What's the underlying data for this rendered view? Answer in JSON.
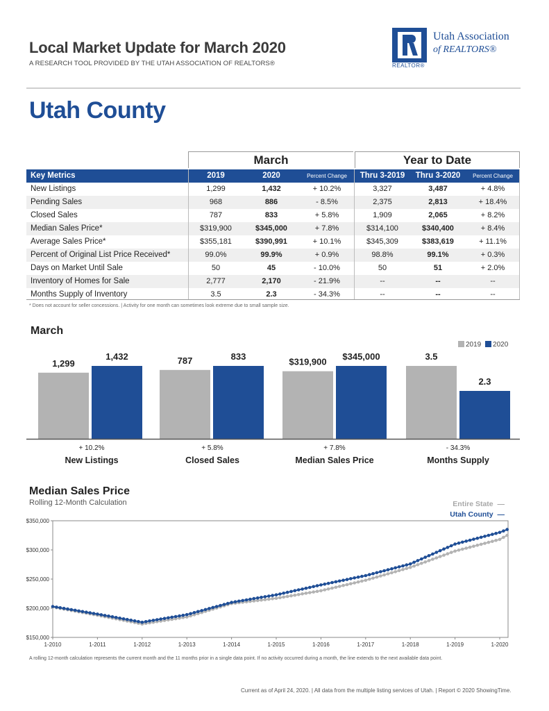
{
  "header": {
    "title": "Local Market Update for March 2020",
    "subtitle": "A RESEARCH TOOL PROVIDED BY THE UTAH ASSOCIATION OF REALTORS®",
    "logo_name_line1": "Utah Association",
    "logo_name_line2": "of REALTORS®",
    "logo_tag": "REALTOR®"
  },
  "county": "Utah County",
  "table": {
    "group_march": "March",
    "group_ytd": "Year to Date",
    "col_key": "Key Metrics",
    "col_2019": "2019",
    "col_2020": "2020",
    "col_pct": "Percent Change",
    "col_ytd2019": "Thru 3-2019",
    "col_ytd2020": "Thru 3-2020",
    "col_ytdpct": "Percent Change",
    "rows": [
      {
        "metric": "New Listings",
        "m2019": "1,299",
        "m2020": "1,432",
        "mpct": "+ 10.2%",
        "y2019": "3,327",
        "y2020": "3,487",
        "ypct": "+ 4.8%"
      },
      {
        "metric": "Pending Sales",
        "m2019": "968",
        "m2020": "886",
        "mpct": "- 8.5%",
        "y2019": "2,375",
        "y2020": "2,813",
        "ypct": "+ 18.4%"
      },
      {
        "metric": "Closed Sales",
        "m2019": "787",
        "m2020": "833",
        "mpct": "+ 5.8%",
        "y2019": "1,909",
        "y2020": "2,065",
        "ypct": "+ 8.2%"
      },
      {
        "metric": "Median Sales Price*",
        "m2019": "$319,900",
        "m2020": "$345,000",
        "mpct": "+ 7.8%",
        "y2019": "$314,100",
        "y2020": "$340,400",
        "ypct": "+ 8.4%"
      },
      {
        "metric": "Average Sales Price*",
        "m2019": "$355,181",
        "m2020": "$390,991",
        "mpct": "+ 10.1%",
        "y2019": "$345,309",
        "y2020": "$383,619",
        "ypct": "+ 11.1%"
      },
      {
        "metric": "Percent of Original List Price Received*",
        "m2019": "99.0%",
        "m2020": "99.9%",
        "mpct": "+ 0.9%",
        "y2019": "98.8%",
        "y2020": "99.1%",
        "ypct": "+ 0.3%"
      },
      {
        "metric": "Days on Market Until Sale",
        "m2019": "50",
        "m2020": "45",
        "mpct": "- 10.0%",
        "y2019": "50",
        "y2020": "51",
        "ypct": "+ 2.0%"
      },
      {
        "metric": "Inventory of Homes for Sale",
        "m2019": "2,777",
        "m2020": "2,170",
        "mpct": "- 21.9%",
        "y2019": "--",
        "y2020": "--",
        "ypct": "--"
      },
      {
        "metric": "Months Supply of Inventory",
        "m2019": "3.5",
        "m2020": "2.3",
        "mpct": "- 34.3%",
        "y2019": "--",
        "y2020": "--",
        "ypct": "--"
      }
    ],
    "footnote": "* Does not account for seller concessions. | Activity for one month can sometimes look extreme due to small sample size."
  },
  "march_section_title": "March",
  "median_section": {
    "title": "Median Sales Price",
    "subtitle": "Rolling 12-Month Calculation",
    "legend_state": "Entire State",
    "legend_county": "Utah County",
    "footnote": "A rolling 12-month calculation represents the current month and the 11 months prior in a single data point. If no activity occurred during a month, the line extends to the next available data point."
  },
  "footer": "Current as of April 24, 2020. | All data from the multiple listing services of Utah. | Report © 2020 ShowingTime.",
  "colors": {
    "brand": "#1f4e96",
    "gray": "#b3b3b3"
  },
  "chart_data": [
    {
      "type": "bar",
      "title": "March",
      "legend": [
        "2019",
        "2020"
      ],
      "categories": [
        "New Listings",
        "Closed Sales",
        "Median Sales Price",
        "Months Supply"
      ],
      "pct_change": [
        "+ 10.2%",
        "+ 5.8%",
        "+ 7.8%",
        "- 34.3%"
      ],
      "series": [
        {
          "name": "2019",
          "values": [
            1299,
            787,
            319900,
            3.5
          ],
          "labels": [
            "1,299",
            "787",
            "$319,900",
            "3.5"
          ]
        },
        {
          "name": "2020",
          "values": [
            1432,
            833,
            345000,
            2.3
          ],
          "labels": [
            "1,432",
            "833",
            "$345,000",
            "2.3"
          ]
        }
      ]
    },
    {
      "type": "line",
      "title": "Median Sales Price",
      "ylim": [
        150000,
        350000
      ],
      "y_ticks": [
        "$150,000",
        "$200,000",
        "$250,000",
        "$300,000",
        "$350,000"
      ],
      "x_ticks": [
        "1-2010",
        "1-2011",
        "1-2012",
        "1-2013",
        "1-2014",
        "1-2015",
        "1-2016",
        "1-2017",
        "1-2018",
        "1-2019",
        "1-2020"
      ],
      "x": [
        "1-2010",
        "1-2011",
        "1-2012",
        "1-2013",
        "1-2014",
        "1-2015",
        "1-2016",
        "1-2017",
        "1-2018",
        "1-2019",
        "1-2020",
        "3-2020"
      ],
      "series": [
        {
          "name": "Entire State",
          "values": [
            202000,
            188000,
            173000,
            185000,
            208000,
            217000,
            230000,
            248000,
            270000,
            298000,
            318000,
            325000
          ]
        },
        {
          "name": "Utah County",
          "values": [
            203000,
            190000,
            176000,
            189000,
            210000,
            223000,
            240000,
            256000,
            276000,
            310000,
            330000,
            335000
          ]
        }
      ]
    }
  ]
}
